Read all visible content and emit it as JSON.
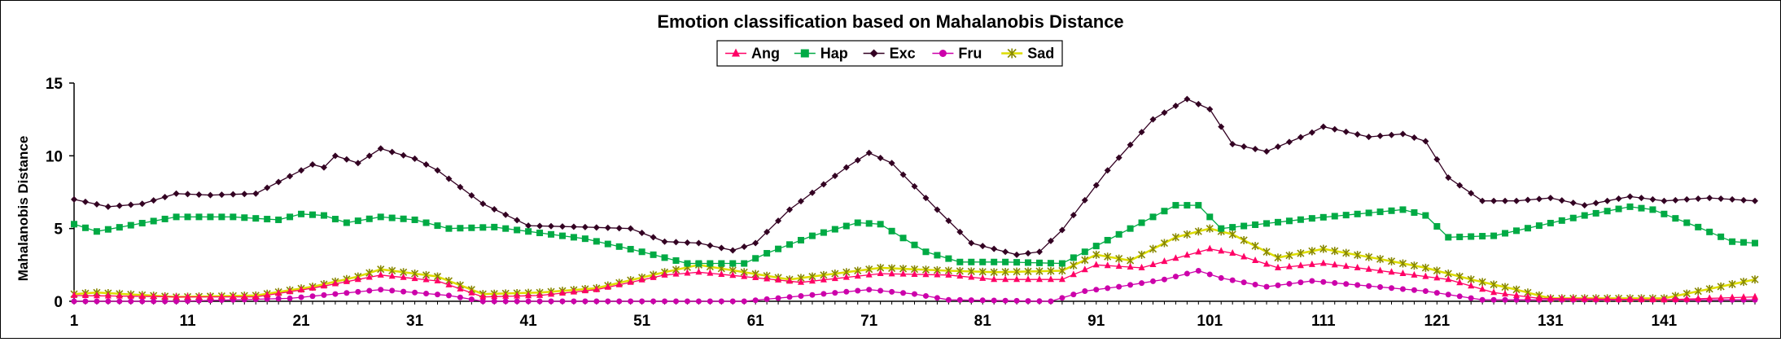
{
  "chart_data": {
    "type": "line",
    "title": "Emotion classification based on Mahalanobis Distance",
    "xlabel": "",
    "ylabel": "Mahalanobis  Distance",
    "ylim": [
      0,
      15
    ],
    "yticks": [
      0,
      5,
      10,
      15
    ],
    "xtick_labels": [
      1,
      11,
      21,
      31,
      41,
      51,
      61,
      71,
      81,
      91,
      101,
      111,
      121,
      131,
      141
    ],
    "x_count": 149,
    "grid": false,
    "legend_position": "top-center",
    "series": [
      {
        "name": "Ang",
        "color": "#ff0066",
        "marker": "triangle",
        "anchors": [
          [
            1,
            0.4
          ],
          [
            10,
            0.3
          ],
          [
            17,
            0.3
          ],
          [
            22,
            0.9
          ],
          [
            26,
            1.5
          ],
          [
            28,
            1.8
          ],
          [
            33,
            1.4
          ],
          [
            37,
            0.3
          ],
          [
            42,
            0.4
          ],
          [
            47,
            0.8
          ],
          [
            53,
            1.8
          ],
          [
            56,
            2.0
          ],
          [
            60,
            1.7
          ],
          [
            65,
            1.3
          ],
          [
            72,
            1.9
          ],
          [
            78,
            1.8
          ],
          [
            82,
            1.5
          ],
          [
            88,
            1.5
          ],
          [
            91,
            2.5
          ],
          [
            95,
            2.3
          ],
          [
            101,
            3.6
          ],
          [
            103,
            3.3
          ],
          [
            107,
            2.3
          ],
          [
            111,
            2.6
          ],
          [
            116,
            2.1
          ],
          [
            122,
            1.5
          ],
          [
            126,
            0.6
          ],
          [
            130,
            0.2
          ],
          [
            141,
            0.1
          ],
          [
            149,
            0.3
          ]
        ]
      },
      {
        "name": "Hap",
        "color": "#00aa44",
        "marker": "square",
        "anchors": [
          [
            1,
            5.3
          ],
          [
            3,
            4.8
          ],
          [
            10,
            5.8
          ],
          [
            15,
            5.8
          ],
          [
            19,
            5.6
          ],
          [
            21,
            6.0
          ],
          [
            23,
            5.9
          ],
          [
            25,
            5.4
          ],
          [
            28,
            5.8
          ],
          [
            31,
            5.6
          ],
          [
            34,
            5.0
          ],
          [
            38,
            5.1
          ],
          [
            42,
            4.7
          ],
          [
            46,
            4.3
          ],
          [
            51,
            3.4
          ],
          [
            55,
            2.6
          ],
          [
            60,
            2.6
          ],
          [
            62,
            3.3
          ],
          [
            66,
            4.5
          ],
          [
            70,
            5.4
          ],
          [
            72,
            5.3
          ],
          [
            76,
            3.4
          ],
          [
            79,
            2.7
          ],
          [
            83,
            2.7
          ],
          [
            88,
            2.6
          ],
          [
            94,
            5.0
          ],
          [
            98,
            6.6
          ],
          [
            100,
            6.6
          ],
          [
            102,
            5.0
          ],
          [
            110,
            5.7
          ],
          [
            114,
            6.0
          ],
          [
            118,
            6.3
          ],
          [
            120,
            5.9
          ],
          [
            122,
            4.4
          ],
          [
            126,
            4.5
          ],
          [
            134,
            5.9
          ],
          [
            138,
            6.5
          ],
          [
            140,
            6.3
          ],
          [
            144,
            5.1
          ],
          [
            147,
            4.1
          ],
          [
            149,
            4.0
          ]
        ]
      },
      {
        "name": "Exc",
        "color": "#330022",
        "marker": "diamond",
        "anchors": [
          [
            1,
            7.0
          ],
          [
            4,
            6.5
          ],
          [
            7,
            6.7
          ],
          [
            10,
            7.4
          ],
          [
            13,
            7.3
          ],
          [
            17,
            7.4
          ],
          [
            22,
            9.4
          ],
          [
            23,
            9.2
          ],
          [
            24,
            10.0
          ],
          [
            26,
            9.5
          ],
          [
            28,
            10.5
          ],
          [
            31,
            9.8
          ],
          [
            33,
            9.0
          ],
          [
            37,
            6.7
          ],
          [
            41,
            5.2
          ],
          [
            46,
            5.1
          ],
          [
            50,
            5.0
          ],
          [
            53,
            4.1
          ],
          [
            56,
            4.0
          ],
          [
            59,
            3.5
          ],
          [
            61,
            4.0
          ],
          [
            64,
            6.3
          ],
          [
            69,
            9.2
          ],
          [
            71,
            10.2
          ],
          [
            73,
            9.5
          ],
          [
            77,
            6.3
          ],
          [
            80,
            4.0
          ],
          [
            84,
            3.2
          ],
          [
            86,
            3.4
          ],
          [
            88,
            4.9
          ],
          [
            92,
            9.0
          ],
          [
            96,
            12.5
          ],
          [
            99,
            13.9
          ],
          [
            101,
            13.2
          ],
          [
            103,
            10.8
          ],
          [
            106,
            10.3
          ],
          [
            110,
            11.6
          ],
          [
            111,
            12.0
          ],
          [
            115,
            11.3
          ],
          [
            118,
            11.5
          ],
          [
            120,
            11.0
          ],
          [
            122,
            8.5
          ],
          [
            125,
            6.9
          ],
          [
            128,
            6.9
          ],
          [
            131,
            7.1
          ],
          [
            134,
            6.6
          ],
          [
            138,
            7.2
          ],
          [
            141,
            6.9
          ],
          [
            145,
            7.1
          ],
          [
            149,
            6.9
          ]
        ]
      },
      {
        "name": "Fru",
        "color": "#cc00aa",
        "marker": "circle",
        "anchors": [
          [
            1,
            0.0
          ],
          [
            10,
            0.0
          ],
          [
            20,
            0.2
          ],
          [
            28,
            0.8
          ],
          [
            34,
            0.4
          ],
          [
            37,
            0.0
          ],
          [
            60,
            0.0
          ],
          [
            71,
            0.8
          ],
          [
            75,
            0.5
          ],
          [
            78,
            0.1
          ],
          [
            87,
            0.0
          ],
          [
            90,
            0.7
          ],
          [
            93,
            1.0
          ],
          [
            97,
            1.5
          ],
          [
            100,
            2.1
          ],
          [
            102,
            1.6
          ],
          [
            106,
            1.0
          ],
          [
            110,
            1.4
          ],
          [
            120,
            0.7
          ],
          [
            125,
            0.1
          ],
          [
            149,
            0.1
          ]
        ]
      },
      {
        "name": "Sad",
        "color": "#f0f000",
        "marker": "star",
        "anchors": [
          [
            1,
            0.5
          ],
          [
            3,
            0.6
          ],
          [
            10,
            0.3
          ],
          [
            17,
            0.4
          ],
          [
            22,
            1.0
          ],
          [
            26,
            1.7
          ],
          [
            28,
            2.2
          ],
          [
            33,
            1.7
          ],
          [
            37,
            0.5
          ],
          [
            42,
            0.6
          ],
          [
            47,
            0.9
          ],
          [
            53,
            2.0
          ],
          [
            56,
            2.5
          ],
          [
            60,
            2.0
          ],
          [
            64,
            1.5
          ],
          [
            72,
            2.3
          ],
          [
            78,
            2.1
          ],
          [
            82,
            2.0
          ],
          [
            88,
            2.1
          ],
          [
            91,
            3.2
          ],
          [
            94,
            2.8
          ],
          [
            98,
            4.4
          ],
          [
            101,
            5.0
          ],
          [
            103,
            4.6
          ],
          [
            107,
            3.0
          ],
          [
            111,
            3.6
          ],
          [
            116,
            2.9
          ],
          [
            120,
            2.3
          ],
          [
            124,
            1.5
          ],
          [
            128,
            0.8
          ],
          [
            131,
            0.2
          ],
          [
            141,
            0.2
          ],
          [
            149,
            1.5
          ]
        ]
      }
    ]
  }
}
